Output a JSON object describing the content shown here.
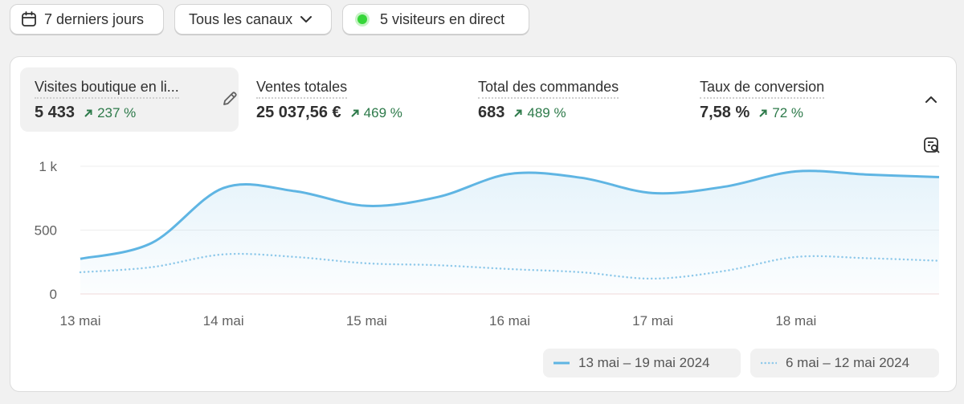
{
  "toolbar": {
    "date_range_label": "7 derniers jours",
    "channel_label": "Tous les canaux",
    "live_visitors_label": "5 visiteurs en direct"
  },
  "metrics": [
    {
      "label": "Visites boutique en li...",
      "value": "5 433",
      "change": "237 %"
    },
    {
      "label": "Ventes totales",
      "value": "25 037,56 €",
      "change": "469 %"
    },
    {
      "label": "Total des commandes",
      "value": "683",
      "change": "489 %"
    },
    {
      "label": "Taux de conversion",
      "value": "7,58 %",
      "change": "72 %"
    }
  ],
  "legend": {
    "current": "13 mai – 19 mai 2024",
    "previous": "6 mai – 12 mai 2024"
  },
  "colors": {
    "accent": "#5fb5e3",
    "positive": "#2d7a4a",
    "live": "#36d639"
  },
  "icons": {
    "date": "calendar-icon",
    "channel": "chevron-down-icon",
    "edit": "pencil-icon",
    "collapse": "chevron-up-icon",
    "inspect": "chart-search-icon"
  },
  "chart_data": {
    "type": "line",
    "x": [
      "13 mai",
      "13.5",
      "14 mai",
      "14.5",
      "15 mai",
      "15.5",
      "16 mai",
      "16.5",
      "17 mai",
      "17.5",
      "18 mai",
      "18.5",
      "19 mai"
    ],
    "x_tick_labels": [
      "13 mai",
      "14 mai",
      "15 mai",
      "16 mai",
      "17 mai",
      "18 mai"
    ],
    "y_ticks": [
      0,
      500,
      1000
    ],
    "y_tick_labels": [
      "0",
      "500",
      "1 k"
    ],
    "ylim": [
      0,
      1000
    ],
    "grid": true,
    "legend_position": "bottom-right",
    "series": [
      {
        "name": "13 mai – 19 mai 2024",
        "style": "solid",
        "color": "#5fb5e3",
        "values": [
          275,
          400,
          830,
          805,
          690,
          760,
          940,
          910,
          790,
          840,
          960,
          935,
          915
        ]
      },
      {
        "name": "6 mai – 12 mai 2024",
        "style": "dotted",
        "color": "#8fc9ea",
        "values": [
          170,
          210,
          310,
          290,
          240,
          225,
          195,
          170,
          120,
          180,
          290,
          280,
          260
        ]
      }
    ]
  }
}
